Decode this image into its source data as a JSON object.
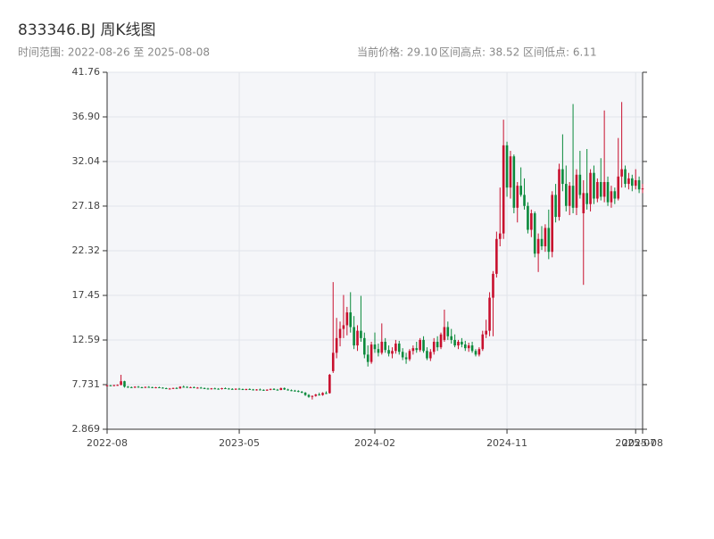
{
  "chart_data": {
    "type": "candlestick",
    "title": "833346.BJ 周K线图",
    "subtitle": "时间范围: 2022-08-26 至 2025-08-08",
    "summary": [
      "当前价格: 29.10",
      "区间高点: 38.52",
      "区间低点: 6.11"
    ],
    "up_color": "#c8102e",
    "down_color": "#0b8a3c",
    "grid": true,
    "ylim": [
      2.869,
      41.76
    ],
    "yticks": [
      2.869,
      7.731,
      12.59,
      17.45,
      22.32,
      27.18,
      32.04,
      {
        "value": 36.9,
        "label": "36.90"
      },
      41.76
    ],
    "categories": [
      "2022-08",
      null,
      null,
      null,
      null,
      null,
      null,
      null,
      null,
      null,
      null,
      null,
      null,
      null,
      null,
      null,
      null,
      null,
      null,
      null,
      null,
      null,
      null,
      null,
      null,
      null,
      null,
      null,
      null,
      null,
      null,
      null,
      null,
      null,
      null,
      null,
      null,
      null,
      "2023-05",
      null,
      null,
      null,
      null,
      null,
      null,
      null,
      null,
      null,
      null,
      null,
      null,
      null,
      null,
      null,
      null,
      null,
      null,
      null,
      null,
      null,
      null,
      null,
      null,
      null,
      null,
      null,
      null,
      null,
      null,
      null,
      null,
      null,
      null,
      null,
      null,
      null,
      null,
      "2024-02",
      null,
      null,
      null,
      null,
      null,
      null,
      null,
      null,
      null,
      null,
      null,
      null,
      null,
      null,
      null,
      null,
      null,
      null,
      null,
      null,
      null,
      null,
      null,
      null,
      null,
      null,
      null,
      null,
      null,
      null,
      null,
      null,
      null,
      null,
      null,
      null,
      null,
      "2024-11",
      null,
      null,
      null,
      null,
      null,
      null,
      null,
      null,
      null,
      null,
      null,
      null,
      null,
      null,
      null,
      null,
      null,
      null,
      null,
      null,
      null,
      null,
      null,
      null,
      null,
      null,
      null,
      null,
      null,
      null,
      null,
      null,
      null,
      null,
      null,
      null,
      "2025-07",
      null,
      "2025-08"
    ],
    "ohlc": [
      [
        7.6,
        7.68,
        7.55,
        7.65
      ],
      [
        7.65,
        7.7,
        7.58,
        7.62
      ],
      [
        7.62,
        7.7,
        7.55,
        7.68
      ],
      [
        7.68,
        7.75,
        7.6,
        7.7
      ],
      [
        7.7,
        8.8,
        7.65,
        8.1
      ],
      [
        8.1,
        8.15,
        7.4,
        7.5
      ],
      [
        7.5,
        7.58,
        7.38,
        7.45
      ],
      [
        7.45,
        7.52,
        7.38,
        7.42
      ],
      [
        7.42,
        7.55,
        7.36,
        7.5
      ],
      [
        7.5,
        7.58,
        7.4,
        7.44
      ],
      [
        7.44,
        7.5,
        7.35,
        7.4
      ],
      [
        7.4,
        7.52,
        7.36,
        7.48
      ],
      [
        7.48,
        7.56,
        7.4,
        7.45
      ],
      [
        7.45,
        7.5,
        7.34,
        7.38
      ],
      [
        7.38,
        7.48,
        7.33,
        7.44
      ],
      [
        7.44,
        7.5,
        7.36,
        7.4
      ],
      [
        7.4,
        7.45,
        7.3,
        7.34
      ],
      [
        7.34,
        7.4,
        7.24,
        7.28
      ],
      [
        7.28,
        7.36,
        7.22,
        7.3
      ],
      [
        7.3,
        7.4,
        7.26,
        7.36
      ],
      [
        7.36,
        7.45,
        7.3,
        7.32
      ],
      [
        7.32,
        7.55,
        7.28,
        7.5
      ],
      [
        7.5,
        7.62,
        7.42,
        7.48
      ],
      [
        7.48,
        7.55,
        7.38,
        7.42
      ],
      [
        7.42,
        7.5,
        7.35,
        7.45
      ],
      [
        7.45,
        7.52,
        7.36,
        7.38
      ],
      [
        7.38,
        7.46,
        7.3,
        7.4
      ],
      [
        7.4,
        7.48,
        7.32,
        7.35
      ],
      [
        7.35,
        7.42,
        7.26,
        7.3
      ],
      [
        7.3,
        7.38,
        7.22,
        7.25
      ],
      [
        7.25,
        7.36,
        7.2,
        7.32
      ],
      [
        7.32,
        7.4,
        7.25,
        7.28
      ],
      [
        7.28,
        7.35,
        7.2,
        7.24
      ],
      [
        7.24,
        7.38,
        7.2,
        7.34
      ],
      [
        7.34,
        7.42,
        7.28,
        7.3
      ],
      [
        7.3,
        7.36,
        7.22,
        7.26
      ],
      [
        7.26,
        7.34,
        7.18,
        7.22
      ],
      [
        7.22,
        7.32,
        7.16,
        7.28
      ],
      [
        7.28,
        7.36,
        7.2,
        7.24
      ],
      [
        7.24,
        7.3,
        7.15,
        7.18
      ],
      [
        7.18,
        7.28,
        7.12,
        7.25
      ],
      [
        7.25,
        7.32,
        7.16,
        7.2
      ],
      [
        7.2,
        7.26,
        7.1,
        7.14
      ],
      [
        7.14,
        7.24,
        7.08,
        7.2
      ],
      [
        7.2,
        7.3,
        7.12,
        7.16
      ],
      [
        7.16,
        7.22,
        7.06,
        7.1
      ],
      [
        7.1,
        7.22,
        7.05,
        7.18
      ],
      [
        7.18,
        7.3,
        7.12,
        7.26
      ],
      [
        7.26,
        7.34,
        7.14,
        7.18
      ],
      [
        7.18,
        7.26,
        7.1,
        7.15
      ],
      [
        7.15,
        7.4,
        7.12,
        7.35
      ],
      [
        7.35,
        7.42,
        7.15,
        7.2
      ],
      [
        7.2,
        7.28,
        7.08,
        7.12
      ],
      [
        7.12,
        7.2,
        7.02,
        7.08
      ],
      [
        7.08,
        7.16,
        6.98,
        7.04
      ],
      [
        7.04,
        7.12,
        6.9,
        6.95
      ],
      [
        6.95,
        7.04,
        6.8,
        6.85
      ],
      [
        6.85,
        6.92,
        6.5,
        6.6
      ],
      [
        6.6,
        6.7,
        6.3,
        6.4
      ],
      [
        6.4,
        6.55,
        6.11,
        6.5
      ],
      [
        6.5,
        6.72,
        6.42,
        6.65
      ],
      [
        6.65,
        6.85,
        6.55,
        6.6
      ],
      [
        6.6,
        6.9,
        6.52,
        6.82
      ],
      [
        6.82,
        7.0,
        6.7,
        6.75
      ],
      [
        6.8,
        8.9,
        6.75,
        8.8
      ],
      [
        9.2,
        18.9,
        9.0,
        11.2
      ],
      [
        11.2,
        15.0,
        10.6,
        12.8
      ],
      [
        12.8,
        14.6,
        11.9,
        13.8
      ],
      [
        13.8,
        17.5,
        12.8,
        14.2
      ],
      [
        14.2,
        16.2,
        13.1,
        15.6
      ],
      [
        15.6,
        17.8,
        13.4,
        14.0
      ],
      [
        14.0,
        15.2,
        11.6,
        12.0
      ],
      [
        12.0,
        14.2,
        11.4,
        13.6
      ],
      [
        13.6,
        17.4,
        12.4,
        12.8
      ],
      [
        12.8,
        13.4,
        10.6,
        11.0
      ],
      [
        11.0,
        12.0,
        9.7,
        10.2
      ],
      [
        10.2,
        12.4,
        10.0,
        12.1
      ],
      [
        12.1,
        13.4,
        11.2,
        11.6
      ],
      [
        11.6,
        12.2,
        10.8,
        11.2
      ],
      [
        11.2,
        14.4,
        11.0,
        12.4
      ],
      [
        12.4,
        12.8,
        11.2,
        11.5
      ],
      [
        11.5,
        12.0,
        10.8,
        11.1
      ],
      [
        11.1,
        11.8,
        10.6,
        11.4
      ],
      [
        11.4,
        12.6,
        11.1,
        12.2
      ],
      [
        12.2,
        12.5,
        11.0,
        11.3
      ],
      [
        11.3,
        11.7,
        10.4,
        10.7
      ],
      [
        10.7,
        11.2,
        10.0,
        10.5
      ],
      [
        10.5,
        11.6,
        10.3,
        11.4
      ],
      [
        11.4,
        12.0,
        11.0,
        11.7
      ],
      [
        11.7,
        12.4,
        11.2,
        11.5
      ],
      [
        11.5,
        12.8,
        11.3,
        12.6
      ],
      [
        12.6,
        13.0,
        11.2,
        11.4
      ],
      [
        11.4,
        11.8,
        10.4,
        10.6
      ],
      [
        10.6,
        11.6,
        10.3,
        11.3
      ],
      [
        11.3,
        12.8,
        11.0,
        12.4
      ],
      [
        12.4,
        13.0,
        11.4,
        11.8
      ],
      [
        11.8,
        13.4,
        11.6,
        13.2
      ],
      [
        12.6,
        15.9,
        12.4,
        14.0
      ],
      [
        14.0,
        14.6,
        12.6,
        13.0
      ],
      [
        13.0,
        13.8,
        12.2,
        12.6
      ],
      [
        12.6,
        13.2,
        11.8,
        12.0
      ],
      [
        12.0,
        12.6,
        11.6,
        12.4
      ],
      [
        12.4,
        12.8,
        11.8,
        12.1
      ],
      [
        12.1,
        12.5,
        11.4,
        11.7
      ],
      [
        11.7,
        12.3,
        11.3,
        12.0
      ],
      [
        12.0,
        12.4,
        11.2,
        11.4
      ],
      [
        11.4,
        11.6,
        10.8,
        11.0
      ],
      [
        11.0,
        11.8,
        10.8,
        11.6
      ],
      [
        11.6,
        13.6,
        11.4,
        13.2
      ],
      [
        13.2,
        14.8,
        12.8,
        13.6
      ],
      [
        13.6,
        17.8,
        13.0,
        17.2
      ],
      [
        17.2,
        20.1,
        13.0,
        19.8
      ],
      [
        19.8,
        24.4,
        19.4,
        23.6
      ],
      [
        23.6,
        29.2,
        22.8,
        24.2
      ],
      [
        24.2,
        36.6,
        23.6,
        33.8
      ],
      [
        33.8,
        34.2,
        28.2,
        29.2
      ],
      [
        29.2,
        33.2,
        28.0,
        32.6
      ],
      [
        32.6,
        32.8,
        26.4,
        27.0
      ],
      [
        27.0,
        29.8,
        25.4,
        29.4
      ],
      [
        29.4,
        31.4,
        28.2,
        28.4
      ],
      [
        28.4,
        30.2,
        26.8,
        27.2
      ],
      [
        27.2,
        27.6,
        24.2,
        24.6
      ],
      [
        24.6,
        26.8,
        23.8,
        26.4
      ],
      [
        26.4,
        26.6,
        21.6,
        22.0
      ],
      [
        22.0,
        24.2,
        20.0,
        23.6
      ],
      [
        23.6,
        25.0,
        22.4,
        22.8
      ],
      [
        22.8,
        25.2,
        22.2,
        24.8
      ],
      [
        24.8,
        26.8,
        21.4,
        22.2
      ],
      [
        22.2,
        28.8,
        21.6,
        28.4
      ],
      [
        28.4,
        29.6,
        25.4,
        26.0
      ],
      [
        26.0,
        31.8,
        25.6,
        31.2
      ],
      [
        31.2,
        35.0,
        28.8,
        29.6
      ],
      [
        29.6,
        31.6,
        26.6,
        27.2
      ],
      [
        27.2,
        29.8,
        26.2,
        29.4
      ],
      [
        29.4,
        38.3,
        26.4,
        27.0
      ],
      [
        27.0,
        31.2,
        26.2,
        30.6
      ],
      [
        30.6,
        33.2,
        28.0,
        28.4
      ],
      [
        26.4,
        30.0,
        18.6,
        28.6
      ],
      [
        28.6,
        33.4,
        26.8,
        27.4
      ],
      [
        27.4,
        31.2,
        26.6,
        30.8
      ],
      [
        30.8,
        31.6,
        27.4,
        28.0
      ],
      [
        28.0,
        30.2,
        27.6,
        29.8
      ],
      [
        29.8,
        32.4,
        27.8,
        28.2
      ],
      [
        28.2,
        37.6,
        27.6,
        29.8
      ],
      [
        29.8,
        30.4,
        27.2,
        27.6
      ],
      [
        27.6,
        29.4,
        27.0,
        28.8
      ],
      [
        28.8,
        29.2,
        27.4,
        28.0
      ],
      [
        28.0,
        34.6,
        27.8,
        30.4
      ],
      [
        30.4,
        38.52,
        29.2,
        31.2
      ],
      [
        31.2,
        31.6,
        29.2,
        29.6
      ],
      [
        29.6,
        30.8,
        29.0,
        30.2
      ],
      [
        30.2,
        30.6,
        28.8,
        29.4
      ],
      [
        29.4,
        31.2,
        29.0,
        30.0
      ],
      [
        30.0,
        30.4,
        28.6,
        29.0
      ],
      [
        29.0,
        29.6,
        28.6,
        29.1
      ]
    ]
  }
}
